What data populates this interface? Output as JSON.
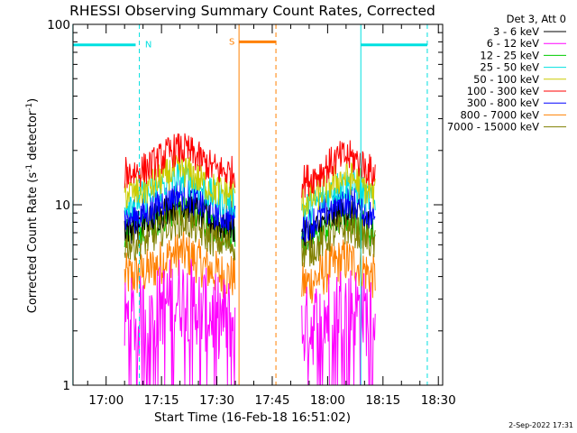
{
  "chart_data": {
    "type": "line",
    "title": "RHESSI Observing Summary Count Rates, Corrected",
    "xlabel": "Start Time (16-Feb-18 16:51:02)",
    "ylabel": "Corrected Count Rate (s",
    "ylabel_sup": "-1",
    "ylabel_mid": " detector",
    "ylabel_end": ")",
    "y_scale": "log",
    "ylim": [
      1,
      100
    ],
    "y_ticks": [
      {
        "label": "1",
        "value": 1
      },
      {
        "label": "10",
        "value": 10
      },
      {
        "label": "100",
        "value": 100
      }
    ],
    "x_range_minutes": [
      "16:51:02",
      "18:31:10"
    ],
    "x_ticks": [
      "17:00",
      "17:15",
      "17:30",
      "17:45",
      "18:00",
      "18:15",
      "18:30"
    ],
    "legend_title": "Det 3, Att 0",
    "legend_position": "top-right, outside plot",
    "series": [
      {
        "name": "3 - 6 keV",
        "color": "#000000",
        "level": 7.5
      },
      {
        "name": "6 - 12 keV",
        "color": "#ff00ff",
        "level": 2.3
      },
      {
        "name": "12 - 25 keV",
        "color": "#00cc00",
        "level": 7.0
      },
      {
        "name": "25 - 50 keV",
        "color": "#00e0e0",
        "level": 10.5
      },
      {
        "name": "50 - 100 keV",
        "color": "#cccc00",
        "level": 11.5
      },
      {
        "name": "100 - 300 keV",
        "color": "#ff0000",
        "level": 15.0
      },
      {
        "name": "300 - 800 keV",
        "color": "#0000ff",
        "level": 8.5
      },
      {
        "name": "800 - 7000 keV",
        "color": "#ff8000",
        "level": 4.0
      },
      {
        "name": "7000 - 15000 keV",
        "color": "#808000",
        "level": 6.0
      }
    ],
    "data_segments": [
      {
        "start": "17:05",
        "end": "17:35",
        "peak": "17:20"
      },
      {
        "start": "17:53",
        "end": "18:13",
        "peak": "18:05"
      }
    ],
    "annotations": [
      {
        "label": "N",
        "color": "#00e0e0",
        "start": "16:51",
        "end": "17:09",
        "solid_edge": "16:51",
        "dashed_edge": "17:09",
        "bar_level": 77,
        "bar_end": "17:08"
      },
      {
        "label": "S",
        "color": "#ff8000",
        "start": "17:36",
        "end": "17:46",
        "solid_edge": "17:36",
        "dashed_edge": "17:46",
        "bar_level": 80,
        "bar_end": "17:46"
      },
      {
        "label": "",
        "color": "#00e0e0",
        "start": "18:09",
        "end": "18:27",
        "solid_edge": "18:09",
        "dashed_edge": "18:27",
        "bar_level": 77,
        "bar_end": "18:27"
      }
    ],
    "grid": false
  },
  "footer_timestamp": "2-Sep-2022 17:31"
}
